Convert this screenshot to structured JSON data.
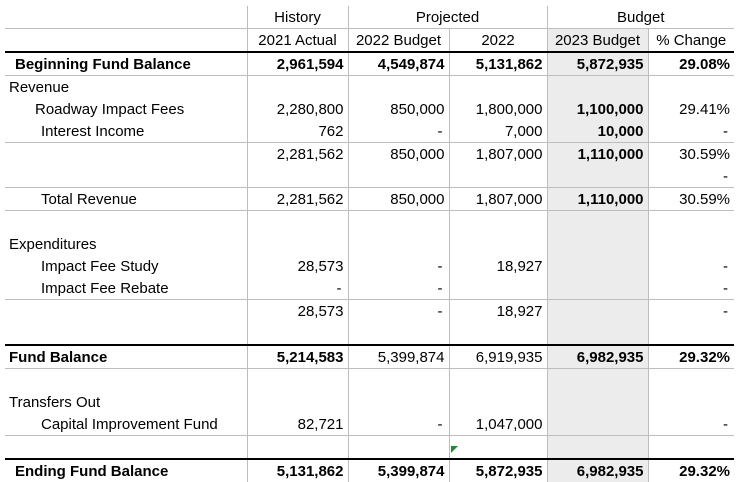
{
  "headers": {
    "history": "History",
    "projected": "Projected",
    "budget": "Budget",
    "col_2021_actual": "2021 Actual",
    "col_2022_budget": "2022 Budget",
    "col_2022": "2022",
    "col_2023_budget": "2023 Budget",
    "col_pct_change": "% Change"
  },
  "rows": {
    "beginning": {
      "label": "Beginning Fund Balance",
      "v2021": "2,961,594",
      "b2022": "4,549,874",
      "p2022": "5,131,862",
      "b2023": "5,872,935",
      "pct": "29.08%"
    },
    "revenue_header": {
      "label": "Revenue"
    },
    "roadway": {
      "label": "Roadway Impact Fees",
      "v2021": "2,280,800",
      "b2022": "850,000",
      "p2022": "1,800,000",
      "b2023": "1,100,000",
      "pct": "29.41%"
    },
    "interest": {
      "label": "Interest Income",
      "v2021": "762",
      "b2022": "-",
      "p2022": "7,000",
      "b2023": "10,000",
      "pct": "-"
    },
    "rev_subtotal": {
      "v2021": "2,281,562",
      "b2022": "850,000",
      "p2022": "1,807,000",
      "b2023": "1,110,000",
      "pct": "30.59%",
      "pct2": "-"
    },
    "total_revenue": {
      "label": "Total Revenue",
      "v2021": "2,281,562",
      "b2022": "850,000",
      "p2022": "1,807,000",
      "b2023": "1,110,000",
      "pct": "30.59%"
    },
    "expenditures_header": {
      "label": "Expenditures"
    },
    "impact_study": {
      "label": "Impact Fee Study",
      "v2021": "28,573",
      "b2022": "-",
      "p2022": "18,927",
      "pct": "-"
    },
    "impact_rebate": {
      "label": "Impact Fee Rebate",
      "v2021": "-",
      "b2022": "-",
      "pct": "-"
    },
    "exp_subtotal": {
      "v2021": "28,573",
      "b2022": "-",
      "p2022": "18,927",
      "pct": "-"
    },
    "fund_balance": {
      "label": "Fund Balance",
      "v2021": "5,214,583",
      "b2022": "5,399,874",
      "p2022": "6,919,935",
      "b2023": "6,982,935",
      "pct": "29.32%"
    },
    "transfers_header": {
      "label": "Transfers Out"
    },
    "capital": {
      "label": "Capital Improvement Fund",
      "v2021": "82,721",
      "b2022": "-",
      "p2022": "1,047,000",
      "pct": "-"
    },
    "ending": {
      "label": "Ending Fund Balance",
      "v2021": "5,131,862",
      "b2022": "5,399,874",
      "p2022": "5,872,935",
      "b2023": "6,982,935",
      "pct": "29.32%"
    }
  }
}
